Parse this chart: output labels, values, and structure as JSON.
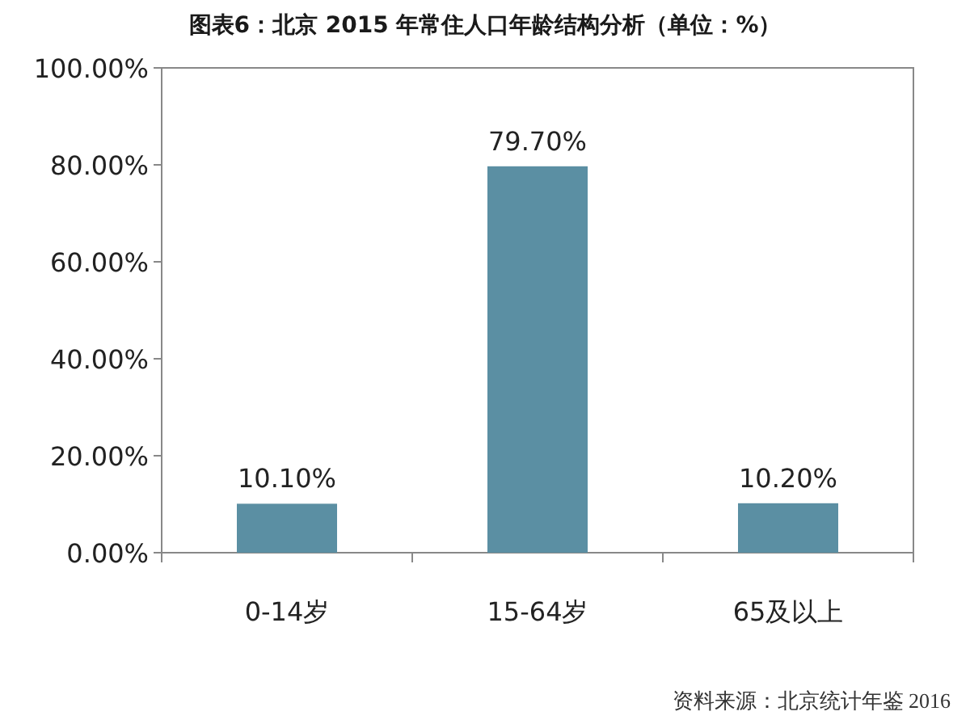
{
  "chart_data": {
    "type": "bar",
    "title": "图表6：北京 2015 年常住人口年龄结构分析（单位：%）",
    "categories": [
      "0-14岁",
      "15-64岁",
      "65及以上"
    ],
    "values": [
      10.1,
      79.7,
      10.2
    ],
    "value_labels": [
      "10.10%",
      "79.70%",
      "10.20%"
    ],
    "color": "#5b8fa3",
    "ylim": [
      0,
      100
    ],
    "yticks": [
      {
        "value": 0,
        "label": "0.00%"
      },
      {
        "value": 20,
        "label": "20.00%"
      },
      {
        "value": 40,
        "label": "40.00%"
      },
      {
        "value": 60,
        "label": "60.00%"
      },
      {
        "value": 80,
        "label": "80.00%"
      },
      {
        "value": 100,
        "label": "100.00%"
      }
    ],
    "grid": false,
    "annotations": [
      "资料来源：北京统计年鉴 2016"
    ]
  }
}
